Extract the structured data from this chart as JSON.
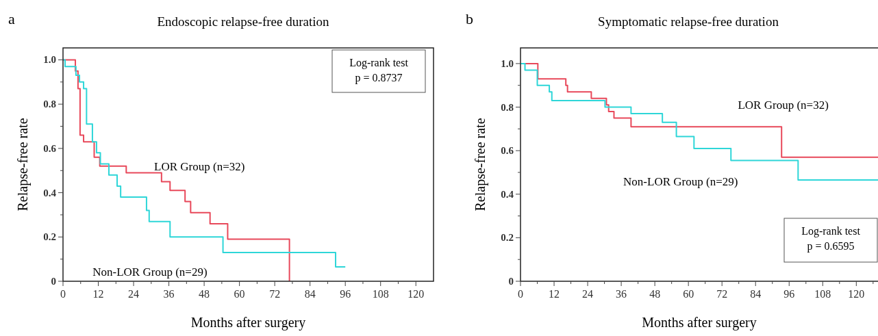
{
  "chart_data": [
    {
      "type": "step",
      "title": "Endoscopic relapse-free duration",
      "xlabel": "Months after surgery",
      "ylabel": "Relapse-free rate",
      "annotations": [
        "a",
        "Log-rank test",
        "p = 0.8737"
      ],
      "xlim": [
        0,
        126
      ],
      "ylim": [
        0,
        1.054
      ],
      "xticks": [
        0,
        {
          "value": 6,
          "label": null
        },
        12,
        {
          "value": 18,
          "label": null
        },
        24,
        {
          "value": 30,
          "label": null
        },
        36,
        {
          "value": 42,
          "label": null
        },
        48,
        {
          "value": 54,
          "label": null
        },
        60,
        {
          "value": 66,
          "label": null
        },
        72,
        {
          "value": 78,
          "label": null
        },
        84,
        {
          "value": 90,
          "label": null
        },
        96,
        {
          "value": 102,
          "label": null
        },
        108,
        {
          "value": 114,
          "label": null
        },
        120
      ],
      "yticks": [
        0,
        {
          "value": 0.1,
          "label": null
        },
        0.2,
        {
          "value": 0.3,
          "label": null
        },
        0.4,
        {
          "value": 0.5,
          "label": null
        },
        0.6,
        {
          "value": 0.7,
          "label": null
        },
        0.8,
        {
          "value": 0.9,
          "label": null
        },
        {
          "value": 1,
          "label": "1.0"
        }
      ],
      "grid": false,
      "legend": false,
      "marker": "none",
      "line_style": "solid",
      "series": [
        {
          "name": "LOR Group (n=32)",
          "color": "#e8485a",
          "x": [
            0,
            4.2,
            5.1,
            5.8,
            7.0,
            10.6,
            12.5,
            21.5,
            33.5,
            36.4,
            41.5,
            43.4,
            50,
            56,
            77
          ],
          "values": [
            1,
            0.95,
            0.87,
            0.66,
            0.63,
            0.56,
            0.52,
            0.49,
            0.45,
            0.41,
            0.36,
            0.31,
            0.26,
            0.19,
            0
          ]
        },
        {
          "name": "Non-LOR Group (n=29)",
          "color": "#2ed6d8",
          "x": [
            0,
            0.7,
            4.4,
            5.6,
            7.0,
            8.0,
            10,
            11.4,
            12.7,
            15.6,
            18.4,
            19.6,
            28.4,
            29.3,
            36.4,
            54.4,
            92.7,
            96
          ],
          "values": [
            1,
            0.97,
            0.93,
            0.9,
            0.87,
            0.71,
            0.63,
            0.58,
            0.53,
            0.48,
            0.43,
            0.38,
            0.32,
            0.27,
            0.2,
            0.13,
            0.065,
            0.065
          ]
        }
      ]
    },
    {
      "type": "step",
      "title": "Symptomatic relapse-free duration",
      "xlabel": "Months after surgery",
      "ylabel": "Relapse-free rate",
      "annotations": [
        "b",
        "Log-rank test",
        "p = 0.6595"
      ],
      "xlim": [
        0,
        128
      ],
      "ylim": [
        0,
        1.072
      ],
      "xticks": [
        0,
        {
          "value": 6,
          "label": null
        },
        12,
        {
          "value": 18,
          "label": null
        },
        24,
        {
          "value": 30,
          "label": null
        },
        36,
        {
          "value": 42,
          "label": null
        },
        48,
        {
          "value": 54,
          "label": null
        },
        60,
        {
          "value": 66,
          "label": null
        },
        72,
        {
          "value": 78,
          "label": null
        },
        84,
        {
          "value": 90,
          "label": null
        },
        96,
        {
          "value": 102,
          "label": null
        },
        108,
        {
          "value": 114,
          "label": null
        },
        120,
        {
          "value": 126,
          "label": null
        }
      ],
      "yticks": [
        0,
        {
          "value": 0.1,
          "label": null
        },
        0.2,
        {
          "value": 0.3,
          "label": null
        },
        0.4,
        {
          "value": 0.5,
          "label": null
        },
        0.6,
        {
          "value": 0.7,
          "label": null
        },
        0.8,
        {
          "value": 0.9,
          "label": null
        },
        {
          "value": 1,
          "label": "1.0"
        }
      ],
      "grid": false,
      "legend": false,
      "marker": "none",
      "line_style": "solid",
      "series": [
        {
          "name": "LOR Group (n=32)",
          "color": "#e8485a",
          "x": [
            0,
            6.2,
            16.2,
            16.8,
            25.3,
            30.7,
            31.5,
            33.4,
            39.5,
            93.3,
            128
          ],
          "values": [
            1,
            0.93,
            0.9,
            0.87,
            0.84,
            0.81,
            0.78,
            0.75,
            0.71,
            0.57,
            0.57
          ]
        },
        {
          "name": "Non-LOR Group (n=29)",
          "color": "#2ed6d8",
          "x": [
            0,
            1.6,
            6.0,
            10.3,
            11.2,
            30.2,
            39.5,
            50.7,
            55.7,
            62,
            75.2,
            99.2,
            128
          ],
          "values": [
            1,
            0.97,
            0.9,
            0.87,
            0.83,
            0.8,
            0.77,
            0.73,
            0.665,
            0.61,
            0.555,
            0.465,
            0.465
          ]
        }
      ]
    }
  ]
}
